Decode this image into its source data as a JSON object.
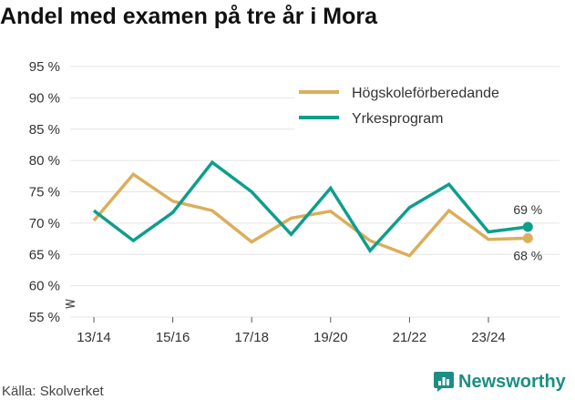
{
  "title": "Andel med examen på tre år i Mora",
  "source": "Källa: Skolverket",
  "logo_text": "Newsworthy",
  "colors": {
    "hogskole": "#dbae5b",
    "yrkes": "#0e9e8c",
    "grid": "#e4e4e4",
    "logo": "#1b8e84"
  },
  "chart_data": {
    "type": "line",
    "x": [
      "13/14",
      "14/15",
      "15/16",
      "16/17",
      "17/18",
      "18/19",
      "19/20",
      "20/21",
      "21/22",
      "22/23",
      "23/24",
      "24/25"
    ],
    "xtick_labels": [
      "13/14",
      "15/16",
      "17/18",
      "19/20",
      "21/22",
      "23/24"
    ],
    "ytick_labels": [
      "55 %",
      "60 %",
      "65 %",
      "70 %",
      "75 %",
      "80 %",
      "85 %",
      "90 %",
      "95 %"
    ],
    "ylim": [
      55,
      95
    ],
    "y_axis_break": true,
    "grid": true,
    "legend_position": "top-right",
    "series": [
      {
        "name": "Högskoleförberedande",
        "color": "#dbae5b",
        "values": [
          70.4,
          77.8,
          73.5,
          72.0,
          67.0,
          70.8,
          71.9,
          67.2,
          64.8,
          72.0,
          67.4,
          67.6
        ],
        "end_label": "68 %"
      },
      {
        "name": "Yrkesprogram",
        "color": "#0e9e8c",
        "values": [
          72.0,
          67.2,
          71.7,
          79.7,
          75.0,
          68.2,
          75.6,
          65.6,
          72.5,
          76.2,
          68.6,
          69.4
        ],
        "end_label": "69 %"
      }
    ]
  }
}
